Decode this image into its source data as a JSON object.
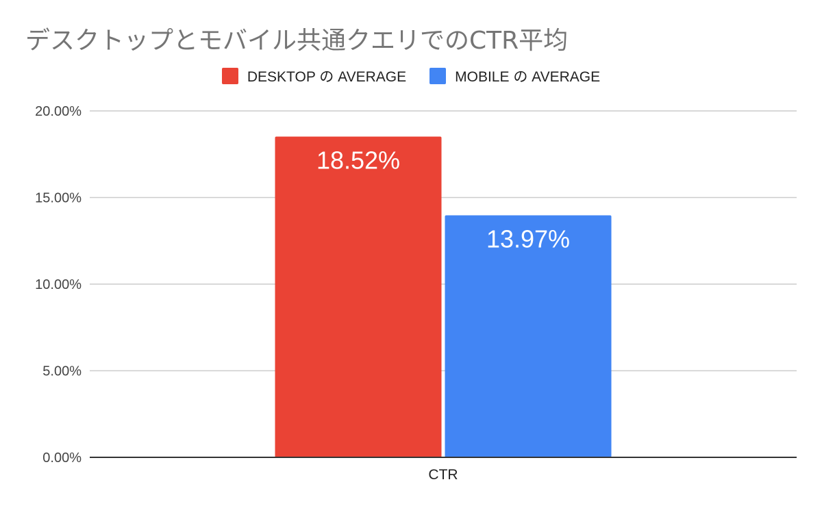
{
  "chart_data": {
    "type": "bar",
    "title": "デスクトップとモバイル共通クエリでのCTR平均",
    "categories": [
      "CTR"
    ],
    "series": [
      {
        "name": "DESKTOP の AVERAGE",
        "values": [
          18.52
        ],
        "label": "18.52%",
        "color": "#EA4335"
      },
      {
        "name": "MOBILE の AVERAGE",
        "values": [
          13.97
        ],
        "label": "13.97%",
        "color": "#4285F4"
      }
    ],
    "y_ticks": [
      {
        "value": 0,
        "label": "0.00%"
      },
      {
        "value": 5,
        "label": "5.00%"
      },
      {
        "value": 10,
        "label": "10.00%"
      },
      {
        "value": 15,
        "label": "15.00%"
      },
      {
        "value": 20,
        "label": "20.00%"
      }
    ],
    "ylim": [
      0,
      20
    ],
    "xlabel": "",
    "ylabel": "",
    "grid": true,
    "legend_position": "top-center",
    "gridline_color": "#CCCCCC",
    "axis_color": "#333333",
    "data_label_color": "#FFFFFF"
  }
}
